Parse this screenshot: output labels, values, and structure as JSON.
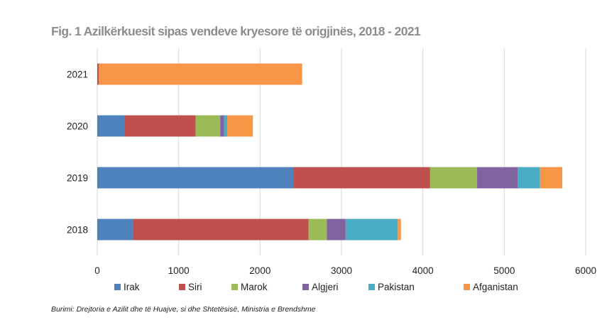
{
  "chart_data": {
    "type": "bar",
    "orientation": "horizontal",
    "stacked": true,
    "title": "Fig. 1 Azilkërkuesit sipas vendeve  kryesore të origjinës, 2018 - 2021",
    "source": "Burimi: Drejtoria e Azilit dhe të Huajve, si dhe Shtetësisë, Ministria e Brendshme",
    "categories": [
      "2021",
      "2020",
      "2019",
      "2018"
    ],
    "xlim": [
      0,
      6000
    ],
    "xticks": [
      0,
      1000,
      2000,
      3000,
      4000,
      5000,
      6000
    ],
    "grid": true,
    "legend_position": "bottom",
    "series": [
      {
        "name": "Irak",
        "color": "#4f81bd",
        "values": [
          0,
          336,
          2407,
          441
        ]
      },
      {
        "name": "Siri",
        "color": "#c0504d",
        "values": [
          20,
          873,
          1682,
          2154
        ]
      },
      {
        "name": "Marok",
        "color": "#9bbb59",
        "values": [
          0,
          301,
          577,
          226
        ]
      },
      {
        "name": "Algjeri",
        "color": "#8064a2",
        "values": [
          0,
          47,
          500,
          230
        ]
      },
      {
        "name": "Pakistan",
        "color": "#4bacc6",
        "values": [
          0,
          39,
          273,
          640
        ]
      },
      {
        "name": "Afganistan",
        "color": "#f79646",
        "values": [
          2497,
          316,
          273,
          39
        ]
      }
    ]
  }
}
